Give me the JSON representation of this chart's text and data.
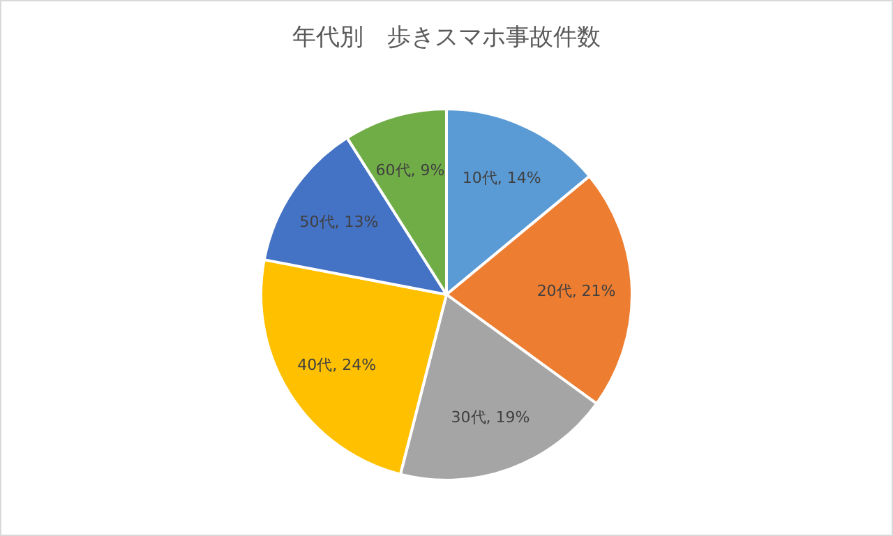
{
  "chart_data": {
    "type": "pie",
    "title": "年代別　歩きスマホ事故件数",
    "categories": [
      "10代",
      "20代",
      "30代",
      "40代",
      "50代",
      "60代"
    ],
    "values": [
      14,
      21,
      19,
      24,
      13,
      9
    ],
    "colors": [
      "#5b9bd5",
      "#ed7d31",
      "#a5a5a5",
      "#ffc000",
      "#4472c4",
      "#70ad47"
    ],
    "value_labels": [
      ", 14%",
      ", 21%",
      ", 19%",
      ", 24%",
      ", 13%",
      ", 9%"
    ]
  }
}
